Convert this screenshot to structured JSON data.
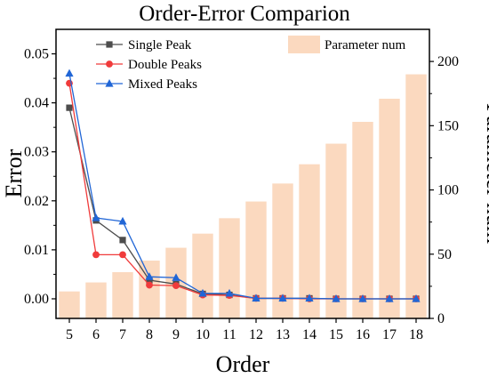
{
  "chart_data": {
    "type": "bar+line",
    "title": "Order-Error Comparion",
    "xlabel": "Order",
    "ylabel": "Error",
    "y2label": "Parameter num",
    "categories": [
      5,
      6,
      7,
      8,
      9,
      10,
      11,
      12,
      13,
      14,
      15,
      16,
      17,
      18
    ],
    "xticks": [
      "5",
      "6",
      "7",
      "8",
      "9",
      "10",
      "11",
      "12",
      "13",
      "14",
      "15",
      "16",
      "17",
      "18"
    ],
    "ylim": [
      -0.004,
      0.055
    ],
    "yticks": [
      "0.00",
      "0.01",
      "0.02",
      "0.03",
      "0.04",
      "0.05"
    ],
    "ytick_values": [
      0,
      0.01,
      0.02,
      0.03,
      0.04,
      0.05
    ],
    "y2lim": [
      0,
      225
    ],
    "y2ticks": [
      "0",
      "50",
      "100",
      "150",
      "200"
    ],
    "y2tick_values": [
      0,
      50,
      100,
      150,
      200
    ],
    "bars": {
      "name": "Parameter num",
      "color": "#FBD9BF",
      "values": [
        21,
        28,
        36,
        45,
        55,
        66,
        78,
        91,
        105,
        120,
        136,
        153,
        171,
        190
      ]
    },
    "series": [
      {
        "name": "Single Peak",
        "color": "#4D4D4D",
        "marker": "square",
        "values": [
          0.039,
          0.016,
          0.012,
          0.0038,
          0.003,
          0.001,
          0.0008,
          0.0001,
          0.0001,
          0.0001,
          0.0,
          0.0,
          0.0,
          0.0
        ]
      },
      {
        "name": "Double Peaks",
        "color": "#F03B3B",
        "marker": "circle",
        "values": [
          0.044,
          0.009,
          0.009,
          0.0028,
          0.0027,
          0.0008,
          0.0007,
          0.0001,
          0.0001,
          0.0,
          0.0,
          0.0,
          0.0,
          0.0
        ]
      },
      {
        "name": "Mixed Peaks",
        "color": "#2166D6",
        "marker": "triangle",
        "values": [
          0.046,
          0.0165,
          0.0158,
          0.0045,
          0.0043,
          0.0011,
          0.0011,
          0.0001,
          0.0001,
          0.0001,
          0.0,
          0.0,
          0.0,
          0.0
        ]
      }
    ],
    "legend_placement": "top-left (lines), top-right (bars)",
    "grid": false
  }
}
